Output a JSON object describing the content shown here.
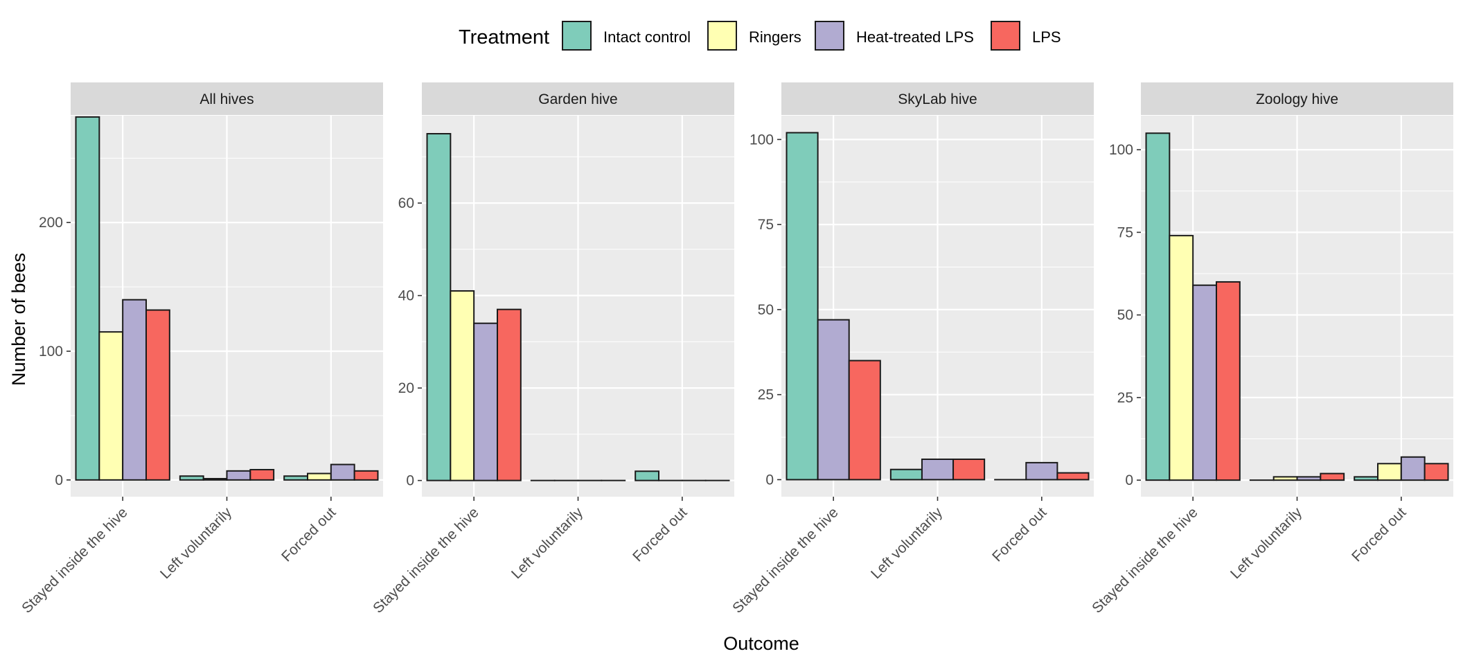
{
  "chart_data": {
    "type": "bar",
    "legend_title": "Treatment",
    "legend_position": "top",
    "xlabel": "Outcome",
    "ylabel": "Number of bees",
    "grid": true,
    "treatments": [
      {
        "name": "Intact control",
        "color": "#7fccba"
      },
      {
        "name": "Ringers",
        "color": "#ffffb3"
      },
      {
        "name": "Heat-treated LPS",
        "color": "#b1abd1"
      },
      {
        "name": "LPS",
        "color": "#f7675f"
      }
    ],
    "categories": [
      "Stayed inside the hive",
      "Left voluntarily",
      "Forced out"
    ],
    "panels": [
      {
        "title": "All hives",
        "ylim": [
          -13,
          283
        ],
        "yticks": [
          0,
          100,
          200
        ],
        "series": [
          {
            "name": "Intact control",
            "values": [
              282,
              3,
              3
            ]
          },
          {
            "name": "Ringers",
            "values": [
              115,
              1,
              5
            ]
          },
          {
            "name": "Heat-treated LPS",
            "values": [
              140,
              7,
              12
            ]
          },
          {
            "name": "LPS",
            "values": [
              132,
              8,
              7
            ]
          }
        ]
      },
      {
        "title": "Garden hive",
        "ylim": [
          -3.5,
          78.9
        ],
        "yticks": [
          0,
          20,
          40,
          60
        ],
        "series": [
          {
            "name": "Intact control",
            "values": [
              75,
              0,
              2
            ]
          },
          {
            "name": "Ringers",
            "values": [
              41,
              0,
              0
            ]
          },
          {
            "name": "Heat-treated LPS",
            "values": [
              34,
              0,
              0
            ]
          },
          {
            "name": "LPS",
            "values": [
              37,
              0,
              0
            ]
          }
        ]
      },
      {
        "title": "SkyLab hive",
        "ylim": [
          -5,
          107
        ],
        "yticks": [
          0,
          25,
          50,
          75,
          100
        ],
        "series": [
          {
            "name": "Intact control",
            "values": [
              102,
              3,
              0
            ]
          },
          {
            "name": "Heat-treated LPS",
            "values": [
              47,
              6,
              5
            ]
          },
          {
            "name": "LPS",
            "values": [
              35,
              6,
              2
            ]
          }
        ]
      },
      {
        "title": "Zoology hive",
        "ylim": [
          -5,
          110.3
        ],
        "yticks": [
          0,
          25,
          50,
          75,
          100
        ],
        "series": [
          {
            "name": "Intact control",
            "values": [
              105,
              0,
              1
            ]
          },
          {
            "name": "Ringers",
            "values": [
              74,
              1,
              5
            ]
          },
          {
            "name": "Heat-treated LPS",
            "values": [
              59,
              1,
              7
            ]
          },
          {
            "name": "LPS",
            "values": [
              60,
              2,
              5
            ]
          }
        ]
      }
    ]
  }
}
